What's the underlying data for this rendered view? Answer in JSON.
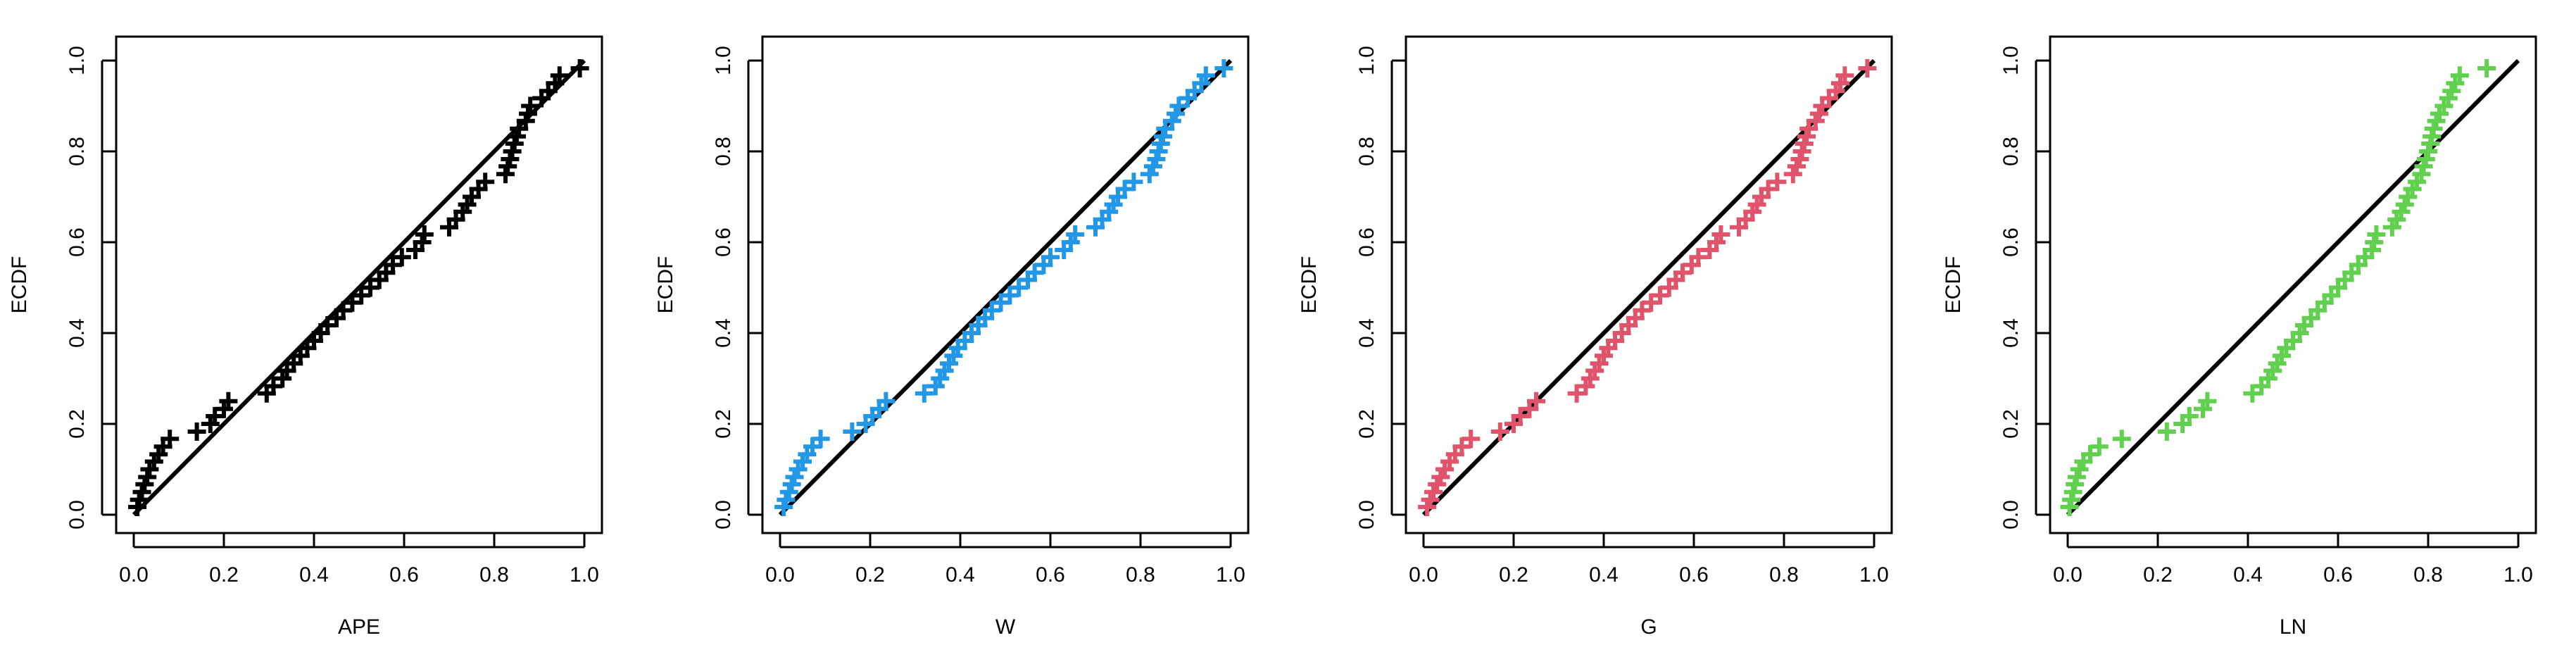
{
  "chart_data": [
    {
      "type": "scatter",
      "xlabel": "APE",
      "ylabel": "ECDF",
      "xlim": [
        0,
        1
      ],
      "ylim": [
        0,
        1
      ],
      "xticks": [
        "0.0",
        "0.2",
        "0.4",
        "0.6",
        "0.8",
        "1.0"
      ],
      "yticks": [
        "0.0",
        "0.2",
        "0.4",
        "0.6",
        "0.8",
        "1.0"
      ],
      "color": "#000000",
      "reference_line": [
        [
          0,
          0
        ],
        [
          1,
          1
        ]
      ],
      "points": [
        [
          0.008,
          0.017
        ],
        [
          0.012,
          0.033
        ],
        [
          0.018,
          0.05
        ],
        [
          0.024,
          0.067
        ],
        [
          0.03,
          0.083
        ],
        [
          0.035,
          0.1
        ],
        [
          0.045,
          0.117
        ],
        [
          0.055,
          0.133
        ],
        [
          0.065,
          0.15
        ],
        [
          0.08,
          0.167
        ],
        [
          0.14,
          0.183
        ],
        [
          0.17,
          0.2
        ],
        [
          0.18,
          0.217
        ],
        [
          0.2,
          0.233
        ],
        [
          0.21,
          0.25
        ],
        [
          0.295,
          0.267
        ],
        [
          0.31,
          0.283
        ],
        [
          0.33,
          0.3
        ],
        [
          0.34,
          0.317
        ],
        [
          0.355,
          0.333
        ],
        [
          0.37,
          0.35
        ],
        [
          0.385,
          0.367
        ],
        [
          0.4,
          0.383
        ],
        [
          0.415,
          0.4
        ],
        [
          0.43,
          0.417
        ],
        [
          0.45,
          0.433
        ],
        [
          0.465,
          0.45
        ],
        [
          0.485,
          0.467
        ],
        [
          0.505,
          0.483
        ],
        [
          0.525,
          0.5
        ],
        [
          0.545,
          0.517
        ],
        [
          0.56,
          0.533
        ],
        [
          0.575,
          0.55
        ],
        [
          0.595,
          0.567
        ],
        [
          0.625,
          0.583
        ],
        [
          0.64,
          0.6
        ],
        [
          0.645,
          0.617
        ],
        [
          0.7,
          0.633
        ],
        [
          0.715,
          0.65
        ],
        [
          0.73,
          0.667
        ],
        [
          0.74,
          0.683
        ],
        [
          0.75,
          0.7
        ],
        [
          0.765,
          0.717
        ],
        [
          0.78,
          0.733
        ],
        [
          0.825,
          0.75
        ],
        [
          0.83,
          0.767
        ],
        [
          0.835,
          0.783
        ],
        [
          0.84,
          0.8
        ],
        [
          0.845,
          0.817
        ],
        [
          0.85,
          0.833
        ],
        [
          0.855,
          0.85
        ],
        [
          0.87,
          0.867
        ],
        [
          0.875,
          0.883
        ],
        [
          0.88,
          0.9
        ],
        [
          0.905,
          0.917
        ],
        [
          0.92,
          0.933
        ],
        [
          0.935,
          0.95
        ],
        [
          0.945,
          0.967
        ],
        [
          0.99,
          0.983
        ]
      ]
    },
    {
      "type": "scatter",
      "xlabel": "W",
      "ylabel": "ECDF",
      "xlim": [
        0,
        1
      ],
      "ylim": [
        0,
        1
      ],
      "xticks": [
        "0.0",
        "0.2",
        "0.4",
        "0.6",
        "0.8",
        "1.0"
      ],
      "yticks": [
        "0.0",
        "0.2",
        "0.4",
        "0.6",
        "0.8",
        "1.0"
      ],
      "color": "#2297E6",
      "reference_line": [
        [
          0,
          0
        ],
        [
          1,
          1
        ]
      ],
      "points": [
        [
          0.008,
          0.017
        ],
        [
          0.013,
          0.033
        ],
        [
          0.02,
          0.05
        ],
        [
          0.026,
          0.067
        ],
        [
          0.032,
          0.083
        ],
        [
          0.04,
          0.1
        ],
        [
          0.05,
          0.117
        ],
        [
          0.06,
          0.133
        ],
        [
          0.072,
          0.15
        ],
        [
          0.09,
          0.167
        ],
        [
          0.16,
          0.183
        ],
        [
          0.19,
          0.2
        ],
        [
          0.205,
          0.217
        ],
        [
          0.22,
          0.233
        ],
        [
          0.235,
          0.25
        ],
        [
          0.32,
          0.267
        ],
        [
          0.345,
          0.283
        ],
        [
          0.355,
          0.3
        ],
        [
          0.365,
          0.317
        ],
        [
          0.375,
          0.333
        ],
        [
          0.385,
          0.35
        ],
        [
          0.395,
          0.367
        ],
        [
          0.41,
          0.383
        ],
        [
          0.425,
          0.4
        ],
        [
          0.44,
          0.417
        ],
        [
          0.455,
          0.433
        ],
        [
          0.47,
          0.45
        ],
        [
          0.49,
          0.467
        ],
        [
          0.51,
          0.483
        ],
        [
          0.53,
          0.5
        ],
        [
          0.55,
          0.517
        ],
        [
          0.565,
          0.533
        ],
        [
          0.585,
          0.55
        ],
        [
          0.6,
          0.567
        ],
        [
          0.63,
          0.583
        ],
        [
          0.645,
          0.6
        ],
        [
          0.655,
          0.617
        ],
        [
          0.7,
          0.633
        ],
        [
          0.715,
          0.65
        ],
        [
          0.73,
          0.667
        ],
        [
          0.74,
          0.683
        ],
        [
          0.75,
          0.7
        ],
        [
          0.765,
          0.717
        ],
        [
          0.785,
          0.733
        ],
        [
          0.82,
          0.75
        ],
        [
          0.828,
          0.767
        ],
        [
          0.835,
          0.783
        ],
        [
          0.84,
          0.8
        ],
        [
          0.845,
          0.817
        ],
        [
          0.85,
          0.833
        ],
        [
          0.855,
          0.85
        ],
        [
          0.87,
          0.867
        ],
        [
          0.878,
          0.883
        ],
        [
          0.885,
          0.9
        ],
        [
          0.905,
          0.917
        ],
        [
          0.92,
          0.933
        ],
        [
          0.935,
          0.95
        ],
        [
          0.945,
          0.967
        ],
        [
          0.985,
          0.983
        ]
      ]
    },
    {
      "type": "scatter",
      "xlabel": "G",
      "ylabel": "ECDF",
      "xlim": [
        0,
        1
      ],
      "ylim": [
        0,
        1
      ],
      "xticks": [
        "0.0",
        "0.2",
        "0.4",
        "0.6",
        "0.8",
        "1.0"
      ],
      "yticks": [
        "0.0",
        "0.2",
        "0.4",
        "0.6",
        "0.8",
        "1.0"
      ],
      "color": "#DF536B",
      "reference_line": [
        [
          0,
          0
        ],
        [
          1,
          1
        ]
      ],
      "points": [
        [
          0.008,
          0.017
        ],
        [
          0.015,
          0.033
        ],
        [
          0.022,
          0.05
        ],
        [
          0.03,
          0.067
        ],
        [
          0.038,
          0.083
        ],
        [
          0.047,
          0.1
        ],
        [
          0.058,
          0.117
        ],
        [
          0.07,
          0.133
        ],
        [
          0.085,
          0.15
        ],
        [
          0.105,
          0.167
        ],
        [
          0.17,
          0.183
        ],
        [
          0.2,
          0.2
        ],
        [
          0.215,
          0.217
        ],
        [
          0.235,
          0.233
        ],
        [
          0.25,
          0.25
        ],
        [
          0.34,
          0.267
        ],
        [
          0.36,
          0.283
        ],
        [
          0.37,
          0.3
        ],
        [
          0.38,
          0.317
        ],
        [
          0.39,
          0.333
        ],
        [
          0.4,
          0.35
        ],
        [
          0.41,
          0.367
        ],
        [
          0.425,
          0.383
        ],
        [
          0.44,
          0.4
        ],
        [
          0.455,
          0.417
        ],
        [
          0.47,
          0.433
        ],
        [
          0.485,
          0.45
        ],
        [
          0.505,
          0.467
        ],
        [
          0.525,
          0.483
        ],
        [
          0.545,
          0.5
        ],
        [
          0.56,
          0.517
        ],
        [
          0.575,
          0.533
        ],
        [
          0.595,
          0.55
        ],
        [
          0.61,
          0.567
        ],
        [
          0.635,
          0.583
        ],
        [
          0.65,
          0.6
        ],
        [
          0.66,
          0.617
        ],
        [
          0.7,
          0.633
        ],
        [
          0.715,
          0.65
        ],
        [
          0.73,
          0.667
        ],
        [
          0.74,
          0.683
        ],
        [
          0.75,
          0.7
        ],
        [
          0.765,
          0.717
        ],
        [
          0.785,
          0.733
        ],
        [
          0.82,
          0.75
        ],
        [
          0.828,
          0.767
        ],
        [
          0.835,
          0.783
        ],
        [
          0.84,
          0.8
        ],
        [
          0.845,
          0.817
        ],
        [
          0.85,
          0.833
        ],
        [
          0.855,
          0.85
        ],
        [
          0.87,
          0.867
        ],
        [
          0.878,
          0.883
        ],
        [
          0.885,
          0.9
        ],
        [
          0.9,
          0.917
        ],
        [
          0.915,
          0.933
        ],
        [
          0.925,
          0.95
        ],
        [
          0.935,
          0.967
        ],
        [
          0.985,
          0.983
        ]
      ]
    },
    {
      "type": "scatter",
      "xlabel": "LN",
      "ylabel": "ECDF",
      "xlim": [
        0,
        1
      ],
      "ylim": [
        0,
        1
      ],
      "xticks": [
        "0.0",
        "0.2",
        "0.4",
        "0.6",
        "0.8",
        "1.0"
      ],
      "yticks": [
        "0.0",
        "0.2",
        "0.4",
        "0.6",
        "0.8",
        "1.0"
      ],
      "color": "#61D04F",
      "reference_line": [
        [
          0,
          0
        ],
        [
          1,
          1
        ]
      ],
      "points": [
        [
          0.004,
          0.017
        ],
        [
          0.008,
          0.033
        ],
        [
          0.012,
          0.05
        ],
        [
          0.016,
          0.067
        ],
        [
          0.02,
          0.083
        ],
        [
          0.026,
          0.1
        ],
        [
          0.035,
          0.117
        ],
        [
          0.05,
          0.133
        ],
        [
          0.07,
          0.15
        ],
        [
          0.12,
          0.167
        ],
        [
          0.22,
          0.183
        ],
        [
          0.255,
          0.2
        ],
        [
          0.27,
          0.217
        ],
        [
          0.3,
          0.233
        ],
        [
          0.31,
          0.25
        ],
        [
          0.41,
          0.267
        ],
        [
          0.43,
          0.283
        ],
        [
          0.445,
          0.3
        ],
        [
          0.455,
          0.317
        ],
        [
          0.465,
          0.333
        ],
        [
          0.475,
          0.35
        ],
        [
          0.485,
          0.367
        ],
        [
          0.5,
          0.383
        ],
        [
          0.515,
          0.4
        ],
        [
          0.525,
          0.417
        ],
        [
          0.54,
          0.433
        ],
        [
          0.555,
          0.45
        ],
        [
          0.57,
          0.467
        ],
        [
          0.585,
          0.483
        ],
        [
          0.6,
          0.5
        ],
        [
          0.615,
          0.517
        ],
        [
          0.63,
          0.533
        ],
        [
          0.645,
          0.55
        ],
        [
          0.66,
          0.567
        ],
        [
          0.675,
          0.583
        ],
        [
          0.68,
          0.6
        ],
        [
          0.685,
          0.617
        ],
        [
          0.72,
          0.633
        ],
        [
          0.73,
          0.65
        ],
        [
          0.74,
          0.667
        ],
        [
          0.748,
          0.683
        ],
        [
          0.755,
          0.7
        ],
        [
          0.765,
          0.717
        ],
        [
          0.775,
          0.733
        ],
        [
          0.785,
          0.75
        ],
        [
          0.79,
          0.767
        ],
        [
          0.795,
          0.783
        ],
        [
          0.8,
          0.8
        ],
        [
          0.805,
          0.817
        ],
        [
          0.808,
          0.833
        ],
        [
          0.812,
          0.85
        ],
        [
          0.818,
          0.867
        ],
        [
          0.825,
          0.883
        ],
        [
          0.835,
          0.9
        ],
        [
          0.845,
          0.917
        ],
        [
          0.852,
          0.933
        ],
        [
          0.86,
          0.95
        ],
        [
          0.87,
          0.967
        ],
        [
          0.93,
          0.983
        ]
      ]
    }
  ]
}
